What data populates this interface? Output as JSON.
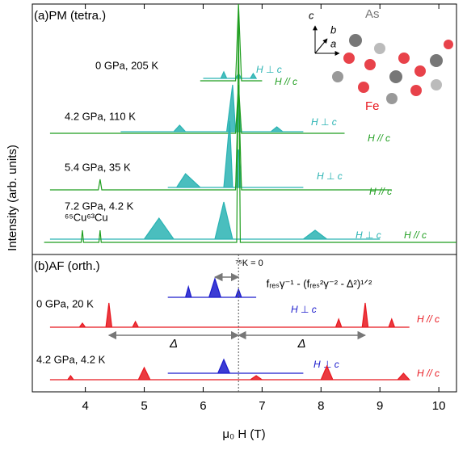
{
  "chart_data": {
    "type": "line",
    "xlabel": "μ₀ H (T)",
    "ylabel": "Intensity (arb. units)",
    "xlim": [
      3.1,
      10.3
    ],
    "xticks": [
      4,
      5,
      6,
      7,
      8,
      9,
      10
    ],
    "panels": [
      {
        "label": "(a)PM (tetra.)",
        "ylim": [
          0,
          310
        ],
        "conditions": [
          "0 GPa, 205 K",
          "4.2 GPa, 110 K",
          "5.4 GPa, 35 K",
          "7.2 GPa, 4.2 K"
        ],
        "series": [
          {
            "name": "H ⊥ c",
            "color": "#2ab3b3",
            "filled": true,
            "x": [
              6.0,
              6.3,
              6.35,
              6.4,
              6.55,
              6.6,
              6.65,
              6.8,
              6.85,
              6.9
            ],
            "values": [
              218,
              218,
              226,
              218,
              218,
              224,
              218,
              218,
              224,
              218
            ]
          },
          {
            "name": "H // c",
            "color": "#1f9e1f",
            "filled": false,
            "x": [
              5.95,
              6.55,
              6.6,
              6.65,
              7.0
            ],
            "values": [
              215,
              215,
              310,
              215,
              215
            ]
          },
          {
            "name": "H ⊥ c",
            "color": "#2ab3b3",
            "filled": true,
            "x": [
              4.6,
              5.5,
              5.6,
              5.7,
              6.4,
              6.5,
              6.55,
              6.6,
              6.65,
              7.15,
              7.25,
              7.35,
              7.7
            ],
            "values": [
              152,
              152,
              160,
              152,
              152,
              210,
              152,
              190,
              152,
              152,
              158,
              152,
              152
            ]
          },
          {
            "name": "H // c",
            "color": "#1f9e1f",
            "filled": false,
            "x": [
              3.4,
              6.55,
              6.6,
              6.65,
              8.4
            ],
            "values": [
              150,
              150,
              210,
              150,
              150
            ]
          },
          {
            "name": "H ⊥ c",
            "color": "#2ab3b3",
            "filled": true,
            "x": [
              5.4,
              5.55,
              5.7,
              5.95,
              6.35,
              6.45,
              6.5,
              6.55,
              6.6,
              6.65,
              7.7
            ],
            "values": [
              83,
              83,
              100,
              83,
              83,
              165,
              83,
              83,
              130,
              83,
              83
            ]
          },
          {
            "name": "H // c",
            "color": "#1f9e1f",
            "filled": false,
            "x": [
              3.4,
              4.22,
              4.25,
              4.28,
              6.55,
              6.6,
              6.65,
              9.2
            ],
            "values": [
              80,
              80,
              93,
              80,
              80,
              210,
              80,
              80
            ]
          },
          {
            "name": "H ⊥ c",
            "color": "#2ab3b3",
            "filled": true,
            "x": [
              3.4,
              5.0,
              5.25,
              5.5,
              6.2,
              6.35,
              6.5,
              7.7,
              7.9,
              8.1,
              9.0
            ],
            "values": [
              19,
              19,
              45,
              19,
              19,
              65,
              19,
              19,
              30,
              19,
              19
            ]
          },
          {
            "name": "H // c",
            "color": "#1f9e1f",
            "filled": false,
            "x": [
              3.3,
              3.93,
              3.95,
              3.97,
              4.23,
              4.25,
              4.27,
              6.57,
              6.6,
              6.63,
              10.3
            ],
            "values": [
              15,
              15,
              30,
              15,
              15,
              30,
              15,
              15,
              295,
              15,
              15
            ]
          }
        ]
      },
      {
        "label": "(b)AF (orth.)",
        "ylim": [
          0,
          170
        ],
        "conditions": [
          "0 GPa, 20 K",
          "4.2 GPa, 4.2 K"
        ],
        "series": [
          {
            "name": "H ⊥ c",
            "color": "#1a1acc",
            "filled": true,
            "x": [
              5.4,
              5.7,
              5.75,
              5.8,
              6.1,
              6.2,
              6.3,
              6.55,
              6.6,
              6.65,
              6.9
            ],
            "values": [
              117,
              117,
              130,
              117,
              117,
              140,
              117,
              117,
              127,
              117,
              117
            ]
          },
          {
            "name": "H // c",
            "color": "#e8171f",
            "filled": true,
            "x": [
              3.4,
              3.9,
              3.95,
              4.0,
              4.35,
              4.4,
              4.45,
              4.8,
              4.85,
              4.9,
              8.25,
              8.3,
              8.35,
              8.7,
              8.75,
              8.8,
              9.15,
              9.2,
              9.25,
              9.5
            ],
            "values": [
              80,
              80,
              85,
              80,
              80,
              110,
              80,
              80,
              87,
              80,
              80,
              90,
              80,
              80,
              110,
              80,
              80,
              90,
              80,
              80
            ]
          },
          {
            "name": "H ⊥ c",
            "color": "#1a1acc",
            "filled": true,
            "x": [
              5.4,
              6.25,
              6.35,
              6.45,
              7.7
            ],
            "values": [
              23,
              23,
              40,
              23,
              23
            ]
          },
          {
            "name": "H // c",
            "color": "#e8171f",
            "filled": true,
            "x": [
              3.4,
              3.7,
              3.75,
              3.8,
              4.9,
              5.0,
              5.1,
              6.8,
              6.9,
              7.0,
              8.0,
              8.1,
              8.2,
              9.3,
              9.4,
              9.5
            ],
            "values": [
              15,
              15,
              20,
              15,
              15,
              30,
              15,
              15,
              20,
              15,
              15,
              32,
              15,
              15,
              23,
              15
            ]
          }
        ]
      }
    ],
    "copper_label": "⁶⁵Cu⁶³Cu",
    "k0_label": "⁷⁵K = 0",
    "k0_field": 6.6,
    "formula": "fᵣₑₛγ⁻¹ - (fᵣₑₛ²γ⁻² - Δ²)¹ᐟ²",
    "formula_arrow": [
      6.2,
      6.6
    ],
    "delta_label": "Δ",
    "delta_arrows": [
      [
        4.4,
        6.6
      ],
      [
        6.6,
        8.75
      ]
    ],
    "inset": {
      "axes": [
        "c",
        "b",
        "a"
      ],
      "atoms": [
        "As",
        "Fe"
      ]
    }
  }
}
